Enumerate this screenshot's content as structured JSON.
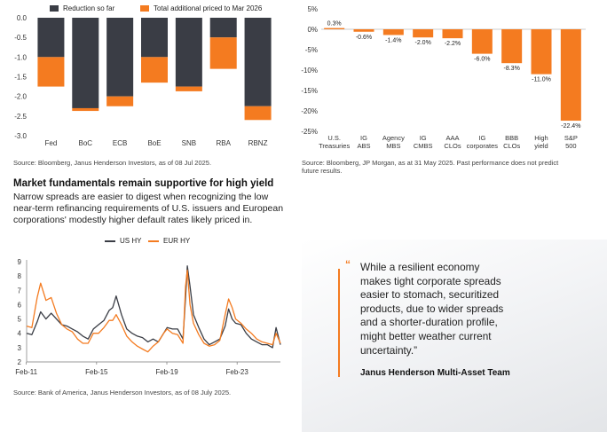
{
  "colors": {
    "dark": "#3a3d45",
    "orange": "#f47b20",
    "axis": "#777777",
    "grid": "#dddddd"
  },
  "chart_data": [
    {
      "type": "bar",
      "stacked": true,
      "categories": [
        "Fed",
        "BoC",
        "ECB",
        "BoE",
        "SNB",
        "RBA",
        "RBNZ"
      ],
      "series": [
        {
          "name": "Reduction so far",
          "values": [
            -1.0,
            -2.3,
            -2.0,
            -1.0,
            -1.75,
            -0.5,
            -2.25
          ]
        },
        {
          "name": "Total additional priced to Mar 2026",
          "values": [
            -0.75,
            -0.07,
            -0.25,
            -0.65,
            -0.12,
            -0.8,
            -0.35
          ]
        }
      ],
      "yticks": [
        "0.0",
        "-0.5",
        "-1.0",
        "-1.5",
        "-2.0",
        "-2.5",
        "-3.0"
      ],
      "ylim": [
        -3.0,
        0.0
      ],
      "grid": false,
      "legend": "top",
      "source": "Source: Bloomberg, Janus Henderson Investors, as of 08 Jul 2025."
    },
    {
      "type": "bar",
      "categories": [
        [
          "U.S.",
          "Treasuries"
        ],
        [
          "IG",
          "ABS"
        ],
        [
          "Agency",
          "MBS"
        ],
        [
          "IG",
          "CMBS"
        ],
        [
          "AAA",
          "CLOs"
        ],
        [
          "IG",
          "corporates"
        ],
        [
          "BBB",
          "CLOs"
        ],
        [
          "High",
          "yield"
        ],
        [
          "S&P",
          "500"
        ]
      ],
      "values": [
        0.3,
        -0.6,
        -1.4,
        -2.0,
        -2.2,
        -6.0,
        -8.3,
        -11.0,
        -22.4
      ],
      "labels": [
        "0.3%",
        "-0.6%",
        "-1.4%",
        "-2.0%",
        "-2.2%",
        "-6.0%",
        "-8.3%",
        "-11.0%",
        "-22.4%"
      ],
      "yticks": [
        "5%",
        "0%",
        "-5%",
        "-10%",
        "-15%",
        "-20%",
        "-25%"
      ],
      "ylim": [
        -25,
        5
      ],
      "grid": false,
      "source": [
        "Source: Bloomberg, JP Morgan, as at 31 May 2025. Past performance does not predict",
        "future results."
      ]
    },
    {
      "type": "line",
      "title": "Market fundamentals remain supportive for high yield",
      "intro": [
        "Narrow spreads are easier to digest when recognizing the low",
        "near-term refinancing requirements of U.S. issuers and European",
        "corporations' modestly higher default rates likely priced in."
      ],
      "xticks": [
        "Feb-11",
        "Feb-15",
        "Feb-19",
        "Feb-23"
      ],
      "yticks": [
        "9",
        "8",
        "7",
        "6",
        "5",
        "4",
        "3",
        "2"
      ],
      "ylim": [
        2,
        9
      ],
      "xlim": [
        2011.1,
        2025.55
      ],
      "grid": false,
      "legend": "top",
      "series": [
        {
          "name": "US HY",
          "x": [
            2011.1,
            2011.4,
            2011.7,
            2011.9,
            2012.2,
            2012.5,
            2012.8,
            2013.1,
            2013.4,
            2013.7,
            2014.0,
            2014.3,
            2014.6,
            2014.9,
            2015.2,
            2015.5,
            2015.8,
            2016.0,
            2016.2,
            2016.5,
            2016.8,
            2017.1,
            2017.4,
            2017.7,
            2018.0,
            2018.3,
            2018.6,
            2018.9,
            2019.1,
            2019.4,
            2019.7,
            2020.0,
            2020.15,
            2020.25,
            2020.4,
            2020.6,
            2020.9,
            2021.2,
            2021.5,
            2021.8,
            2022.1,
            2022.4,
            2022.6,
            2022.8,
            2023.0,
            2023.3,
            2023.6,
            2023.9,
            2024.2,
            2024.5,
            2024.8,
            2025.1,
            2025.3,
            2025.55
          ],
          "y": [
            4.0,
            3.9,
            4.8,
            5.5,
            5.0,
            5.4,
            5.0,
            4.6,
            4.5,
            4.3,
            4.1,
            3.8,
            3.6,
            4.3,
            4.6,
            4.9,
            5.6,
            5.8,
            6.6,
            5.3,
            4.3,
            4.0,
            3.8,
            3.7,
            3.4,
            3.6,
            3.4,
            4.0,
            4.4,
            4.3,
            4.3,
            3.6,
            6.5,
            8.7,
            7.3,
            5.3,
            4.4,
            3.6,
            3.2,
            3.4,
            3.6,
            4.5,
            5.7,
            5.0,
            4.7,
            4.6,
            4.0,
            3.6,
            3.4,
            3.2,
            3.2,
            3.0,
            4.4,
            3.2
          ]
        },
        {
          "name": "EUR HY",
          "x": [
            2011.1,
            2011.4,
            2011.7,
            2011.9,
            2012.2,
            2012.5,
            2012.8,
            2013.1,
            2013.4,
            2013.7,
            2014.0,
            2014.3,
            2014.6,
            2014.9,
            2015.2,
            2015.5,
            2015.8,
            2016.0,
            2016.2,
            2016.5,
            2016.8,
            2017.1,
            2017.4,
            2017.7,
            2018.0,
            2018.3,
            2018.6,
            2018.9,
            2019.1,
            2019.4,
            2019.7,
            2020.0,
            2020.15,
            2020.25,
            2020.4,
            2020.6,
            2020.9,
            2021.2,
            2021.5,
            2021.8,
            2022.1,
            2022.4,
            2022.6,
            2022.8,
            2023.0,
            2023.3,
            2023.6,
            2023.9,
            2024.2,
            2024.5,
            2024.8,
            2025.1,
            2025.3,
            2025.55
          ],
          "y": [
            4.5,
            4.4,
            6.5,
            7.5,
            6.3,
            6.5,
            5.4,
            4.6,
            4.3,
            4.1,
            3.6,
            3.3,
            3.3,
            4.0,
            4.0,
            4.4,
            4.9,
            4.9,
            5.3,
            4.6,
            3.8,
            3.4,
            3.1,
            2.9,
            2.7,
            3.1,
            3.4,
            4.0,
            4.3,
            4.0,
            3.9,
            3.3,
            7.3,
            8.4,
            6.0,
            4.7,
            3.9,
            3.3,
            3.1,
            3.2,
            3.5,
            5.3,
            6.4,
            5.8,
            5.0,
            4.7,
            4.3,
            4.0,
            3.6,
            3.4,
            3.3,
            3.2,
            4.0,
            3.3
          ]
        }
      ],
      "source": "Source: Bank of America, Janus Henderson Investors, as of 08 July 2025."
    }
  ],
  "quote": {
    "mark": "“",
    "lines": [
      "While a resilient economy",
      "makes tight corporate spreads",
      "easier to stomach, securitized",
      "products, due to wider spreads",
      "and a shorter-duration profile,",
      "might better weather current",
      "uncertainty.”"
    ],
    "author": "Janus Henderson Multi-Asset Team"
  }
}
